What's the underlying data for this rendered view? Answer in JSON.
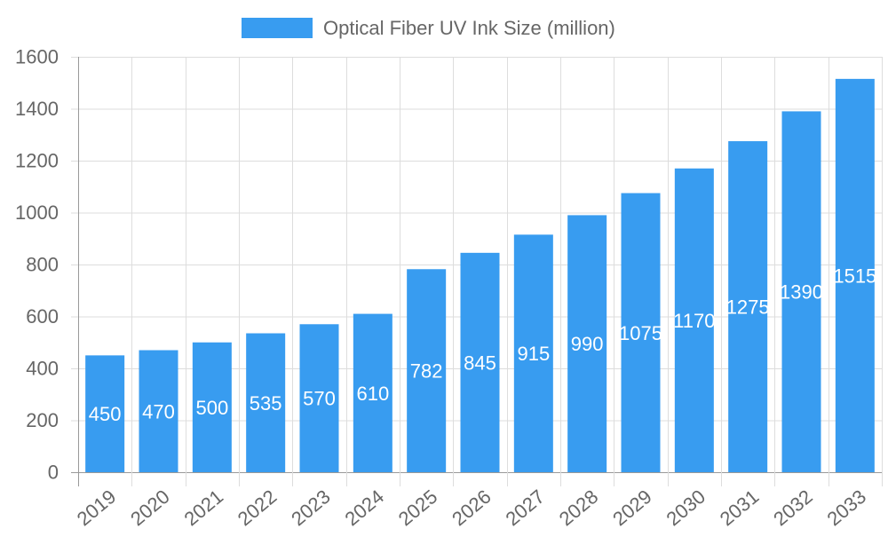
{
  "chart_data": {
    "type": "bar",
    "categories": [
      "2019",
      "2020",
      "2021",
      "2022",
      "2023",
      "2024",
      "2025",
      "2026",
      "2027",
      "2028",
      "2029",
      "2030",
      "2031",
      "2032",
      "2033"
    ],
    "series": [
      {
        "name": "Optical Fiber UV Ink Size (million)",
        "values": [
          450,
          470,
          500,
          535,
          570,
          610,
          782,
          845,
          915,
          990,
          1075,
          1170,
          1275,
          1390,
          1515
        ],
        "color": "#389cf0"
      }
    ],
    "ylim": [
      0,
      1600
    ],
    "yticks": [
      0,
      200,
      400,
      600,
      800,
      1000,
      1200,
      1400,
      1600
    ],
    "grid": true,
    "legend": "top-center",
    "data_labels": true
  }
}
